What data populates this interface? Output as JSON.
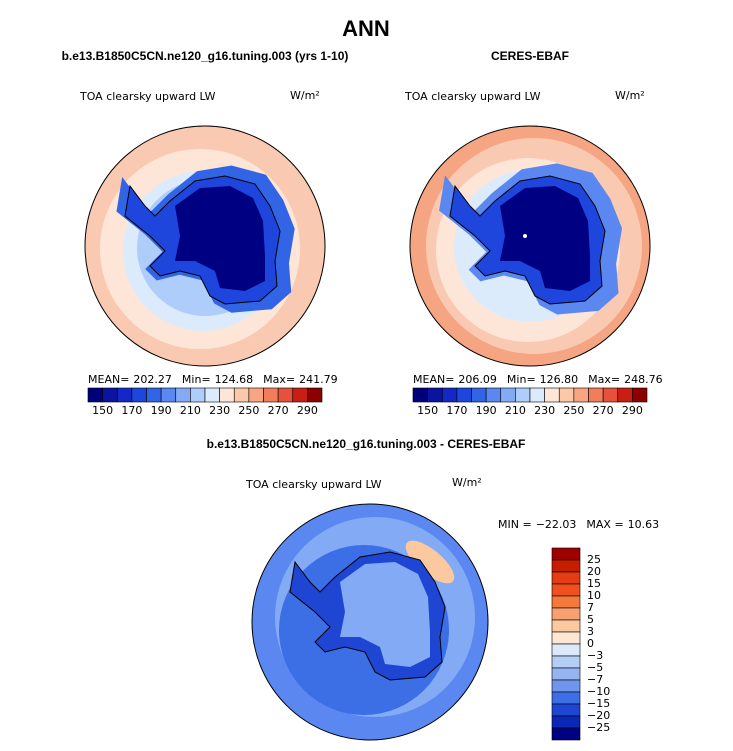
{
  "title": "ANN",
  "panels": [
    {
      "title": "b.e13.B1850C5CN.ne120_g16.tuning.003 (yrs 1-10)",
      "field": "TOA clearsky upward LW",
      "units": "W/m²",
      "stats": [
        {
          "label": "MEAN=",
          "value": "202.27"
        },
        {
          "label": "Min=",
          "value": "124.68"
        },
        {
          "label": "Max=",
          "value": "241.79"
        }
      ]
    },
    {
      "title": "CERES-EBAF",
      "field": "TOA clearsky upward LW",
      "units": "W/m²",
      "stats": [
        {
          "label": "MEAN=",
          "value": "206.09"
        },
        {
          "label": "Min=",
          "value": "126.80"
        },
        {
          "label": "Max=",
          "value": "248.76"
        }
      ]
    }
  ],
  "colorbar": {
    "labels": [
      150,
      170,
      190,
      210,
      230,
      250,
      270,
      290
    ],
    "colors": [
      "#00007d",
      "#0a14a0",
      "#1428c8",
      "#1e46dc",
      "#3264e6",
      "#5a87f0",
      "#82aaf5",
      "#afcdfa",
      "#dcebfc",
      "#fde6d7",
      "#fbc8aa",
      "#f7a582",
      "#f27d5a",
      "#e6503c",
      "#c81e14",
      "#8c0000"
    ]
  },
  "diff": {
    "title": "b.e13.B1850C5CN.ne120_g16.tuning.003 - CERES-EBAF",
    "field": "TOA clearsky upward LW",
    "units": "W/m²",
    "stats": [
      {
        "label": "MIN =",
        "value": "−22.03"
      },
      {
        "label": "MAX =",
        "value": "10.63"
      }
    ],
    "colorbar": {
      "labels": [
        "25",
        "20",
        "15",
        "10",
        "7",
        "5",
        "3",
        "0",
        "−3",
        "−5",
        "−7",
        "−10",
        "−15",
        "−20",
        "−25"
      ],
      "colors": [
        "#9e0000",
        "#c81e00",
        "#e63c14",
        "#f0501e",
        "#f5783c",
        "#f8a070",
        "#fbc8a0",
        "#fde6d2",
        "#dce9fa",
        "#b4cdf5",
        "#96b4f0",
        "#6e96eb",
        "#3c6ee6",
        "#1e46d2",
        "#0a28b4",
        "#000082"
      ]
    }
  }
}
